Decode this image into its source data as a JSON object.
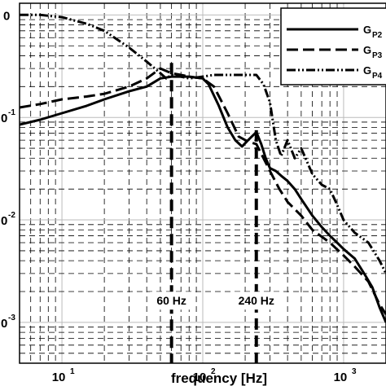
{
  "chart_data": {
    "type": "line",
    "title": "",
    "xlabel": "frequency [Hz]",
    "ylabel": "",
    "xscale": "log",
    "yscale": "log",
    "xlim": [
      5,
      2000
    ],
    "ylim": [
      0.0004,
      1.3
    ],
    "grid": true,
    "legend_position": "top-right",
    "x_ticks": [
      {
        "base": "10",
        "exp": "1",
        "value": 10
      },
      {
        "base": "10",
        "exp": "2",
        "value": 100
      },
      {
        "base": "10",
        "exp": "3",
        "value": 1000
      }
    ],
    "y_ticks": [
      {
        "base": "0",
        "exp": "",
        "value": 1
      },
      {
        "base": "0",
        "exp": "-1",
        "value": 0.1
      },
      {
        "base": "0",
        "exp": "-2",
        "value": 0.01
      },
      {
        "base": "0",
        "exp": "-3",
        "value": 0.001
      }
    ],
    "annotations": [
      {
        "text": "60 Hz",
        "x": 60,
        "y_top": 0.34,
        "label_y": 0.0016
      },
      {
        "text": "240 Hz",
        "x": 240,
        "y_top": 0.075,
        "label_y": 0.0016
      }
    ],
    "series": [
      {
        "name": "G",
        "subscript": "P2",
        "style": "solid",
        "x": [
          5,
          7,
          10,
          15,
          20,
          30,
          40,
          50,
          60,
          70,
          80,
          100,
          110,
          130,
          150,
          170,
          190,
          210,
          240,
          260,
          280,
          300,
          330,
          360,
          400,
          450,
          500,
          600,
          700,
          800,
          900,
          1000,
          1200,
          1400,
          1600,
          1800,
          2000
        ],
        "y": [
          0.085,
          0.095,
          0.11,
          0.13,
          0.15,
          0.18,
          0.2,
          0.24,
          0.25,
          0.25,
          0.25,
          0.24,
          0.21,
          0.13,
          0.08,
          0.06,
          0.052,
          0.06,
          0.072,
          0.055,
          0.04,
          0.032,
          0.03,
          0.027,
          0.024,
          0.02,
          0.016,
          0.011,
          0.0085,
          0.007,
          0.006,
          0.0052,
          0.0042,
          0.003,
          0.0022,
          0.0014,
          0.001
        ]
      },
      {
        "name": "G",
        "subscript": "P3",
        "style": "dashed",
        "x": [
          5,
          7,
          10,
          15,
          20,
          30,
          40,
          50,
          60,
          70,
          80,
          100,
          120,
          150,
          180,
          210,
          240,
          270,
          300,
          350,
          400,
          500,
          600,
          800,
          1000,
          1200,
          1500,
          1800,
          2000
        ],
        "y": [
          0.125,
          0.135,
          0.15,
          0.16,
          0.17,
          0.2,
          0.24,
          0.3,
          0.27,
          0.26,
          0.25,
          0.24,
          0.2,
          0.11,
          0.065,
          0.058,
          0.055,
          0.04,
          0.03,
          0.02,
          0.015,
          0.011,
          0.008,
          0.006,
          0.0045,
          0.0035,
          0.0025,
          0.0015,
          0.0012
        ]
      },
      {
        "name": "G",
        "subscript": "P4",
        "style": "dash-dot-dot",
        "x": [
          5,
          7,
          10,
          15,
          20,
          30,
          40,
          50,
          55,
          60,
          70,
          80,
          100,
          120,
          150,
          200,
          240,
          270,
          300,
          330,
          360,
          400,
          450,
          500,
          600,
          700,
          800,
          900,
          1000,
          1200,
          1500,
          1800,
          2000
        ],
        "y": [
          1.0,
          1.0,
          0.95,
          0.82,
          0.7,
          0.48,
          0.35,
          0.27,
          0.24,
          0.26,
          0.25,
          0.24,
          0.25,
          0.26,
          0.26,
          0.26,
          0.26,
          0.21,
          0.14,
          0.06,
          0.042,
          0.06,
          0.04,
          0.05,
          0.028,
          0.022,
          0.02,
          0.014,
          0.01,
          0.0075,
          0.006,
          0.004,
          0.003
        ]
      }
    ]
  }
}
